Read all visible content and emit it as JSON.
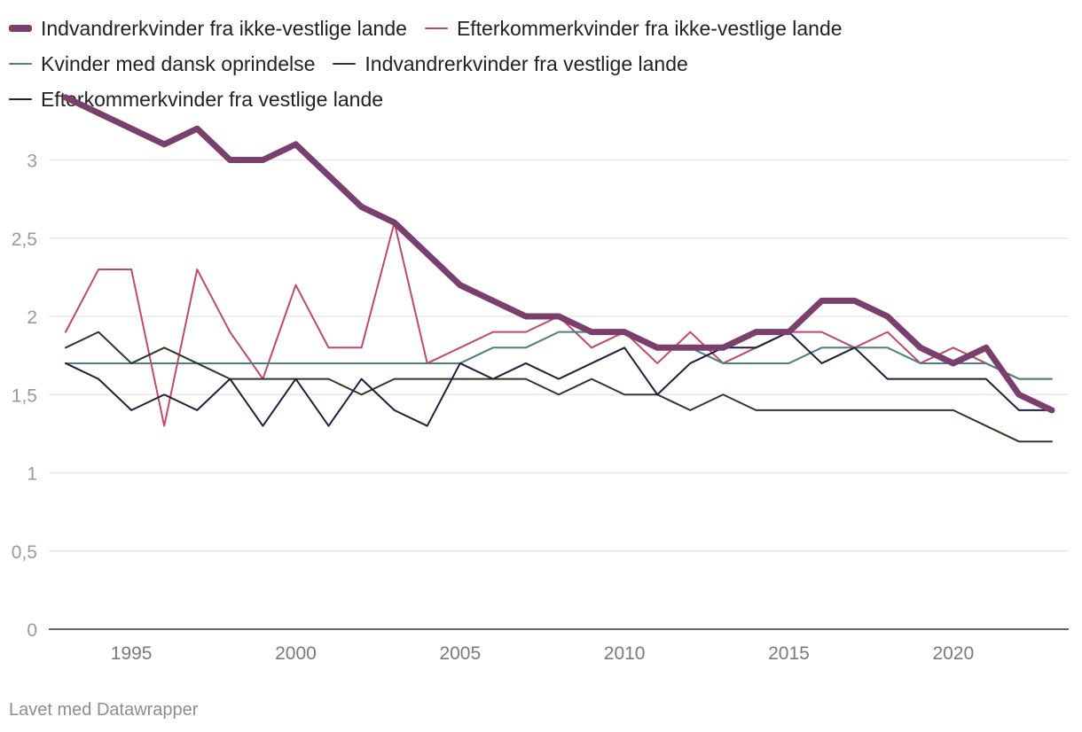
{
  "chart_data": {
    "type": "line",
    "title": "",
    "xlabel": "",
    "ylabel": "",
    "ylim": [
      0,
      3.5
    ],
    "y_ticks": [
      0,
      0.5,
      1,
      1.5,
      2,
      2.5,
      3
    ],
    "y_tick_labels": [
      "0",
      "0,5",
      "1",
      "1,5",
      "2",
      "2,5",
      "3"
    ],
    "x_ticks": [
      1995,
      2000,
      2005,
      2010,
      2015,
      2020
    ],
    "x_tick_labels": [
      "1995",
      "2000",
      "2005",
      "2010",
      "2015",
      "2020"
    ],
    "x": [
      1993,
      1994,
      1995,
      1996,
      1997,
      1998,
      1999,
      2000,
      2001,
      2002,
      2003,
      2004,
      2005,
      2006,
      2007,
      2008,
      2009,
      2010,
      2011,
      2012,
      2013,
      2014,
      2015,
      2016,
      2017,
      2018,
      2019,
      2020,
      2021,
      2022,
      2023
    ],
    "legend_position": "top",
    "series": [
      {
        "name": "Indvandrerkvinder fra ikke-vestlige lande",
        "color": "#7b3f6e",
        "emphasis": "thick",
        "values": [
          3.4,
          3.3,
          3.2,
          3.1,
          3.2,
          3.0,
          3.0,
          3.1,
          2.9,
          2.7,
          2.6,
          2.4,
          2.2,
          2.1,
          2.0,
          2.0,
          1.9,
          1.9,
          1.8,
          1.8,
          1.8,
          1.9,
          1.9,
          2.1,
          2.1,
          2.0,
          1.8,
          1.7,
          1.8,
          1.5,
          1.4
        ]
      },
      {
        "name": "Efterkommerkvinder fra ikke-vestlige lande",
        "color": "#c0496b",
        "emphasis": "thin",
        "values": [
          1.9,
          2.3,
          2.3,
          1.3,
          2.3,
          1.9,
          1.6,
          2.2,
          1.8,
          1.8,
          2.6,
          1.7,
          1.8,
          1.9,
          1.9,
          2.0,
          1.8,
          1.9,
          1.7,
          1.9,
          1.7,
          1.8,
          1.9,
          1.9,
          1.8,
          1.9,
          1.7,
          1.8,
          1.7,
          1.6,
          1.6
        ]
      },
      {
        "name": "Kvinder med dansk oprindelse",
        "color": "#4b7f80",
        "emphasis": "thin",
        "values": [
          1.7,
          1.7,
          1.7,
          1.7,
          1.7,
          1.7,
          1.7,
          1.7,
          1.7,
          1.7,
          1.7,
          1.7,
          1.7,
          1.8,
          1.8,
          1.9,
          1.9,
          1.9,
          1.8,
          1.8,
          1.7,
          1.7,
          1.7,
          1.8,
          1.8,
          1.8,
          1.7,
          1.7,
          1.7,
          1.6,
          1.6
        ]
      },
      {
        "name": "Indvandrerkvinder fra vestlige lande",
        "color": "#2b3a22",
        "emphasis": "thin",
        "values": [
          1.8,
          1.9,
          1.7,
          1.8,
          1.7,
          1.6,
          1.6,
          1.6,
          1.6,
          1.5,
          1.6,
          1.6,
          1.6,
          1.6,
          1.6,
          1.5,
          1.6,
          1.5,
          1.5,
          1.4,
          1.5,
          1.4,
          1.4,
          1.4,
          1.4,
          1.4,
          1.4,
          1.4,
          1.3,
          1.2,
          1.2
        ]
      },
      {
        "name": "Efterkommerkvinder fra vestlige lande",
        "color": "#1e1f3d",
        "emphasis": "thin",
        "values": [
          1.7,
          1.6,
          1.4,
          1.5,
          1.4,
          1.6,
          1.3,
          1.6,
          1.3,
          1.6,
          1.4,
          1.3,
          1.7,
          1.6,
          1.7,
          1.6,
          1.7,
          1.8,
          1.5,
          1.7,
          1.8,
          1.8,
          1.9,
          1.7,
          1.8,
          1.6,
          1.6,
          1.6,
          1.6,
          1.4,
          1.4
        ]
      }
    ]
  },
  "legend": {
    "items": [
      {
        "label": "Indvandrerkvinder fra ikke-vestlige lande",
        "color": "#7b3f6e"
      },
      {
        "label": "Efterkommerkvinder fra ikke-vestlige lande",
        "color": "#c0496b"
      },
      {
        "label": "Kvinder med dansk oprindelse",
        "color": "#4b7f80"
      },
      {
        "label": "Indvandrerkvinder fra vestlige lande",
        "color": "#2b3a22"
      },
      {
        "label": "Efterkommerkvinder fra vestlige lande",
        "color": "#1e1f3d"
      }
    ]
  },
  "footer": {
    "credit": "Lavet med Datawrapper"
  }
}
